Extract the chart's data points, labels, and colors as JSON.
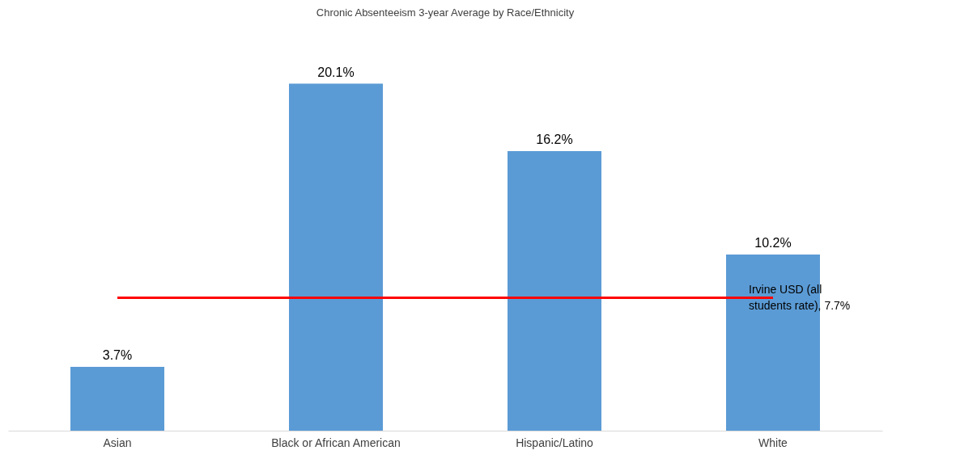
{
  "chart_data": {
    "type": "bar",
    "title": "Chronic Absenteeism 3-year Average by Race/Ethnicity",
    "categories": [
      "Asian",
      "Black or African American",
      "Hispanic/Latino",
      "White"
    ],
    "values": [
      3.7,
      20.1,
      16.2,
      10.2
    ],
    "value_labels": [
      "3.7%",
      "20.1%",
      "16.2%",
      "10.2%"
    ],
    "color": "#5b9bd5",
    "ref_lines": [
      {
        "axis": "y",
        "value": 7.7,
        "label": "Irvine USD (all students rate), 7.7%",
        "color": "#ff0000"
      }
    ],
    "grid": false
  }
}
